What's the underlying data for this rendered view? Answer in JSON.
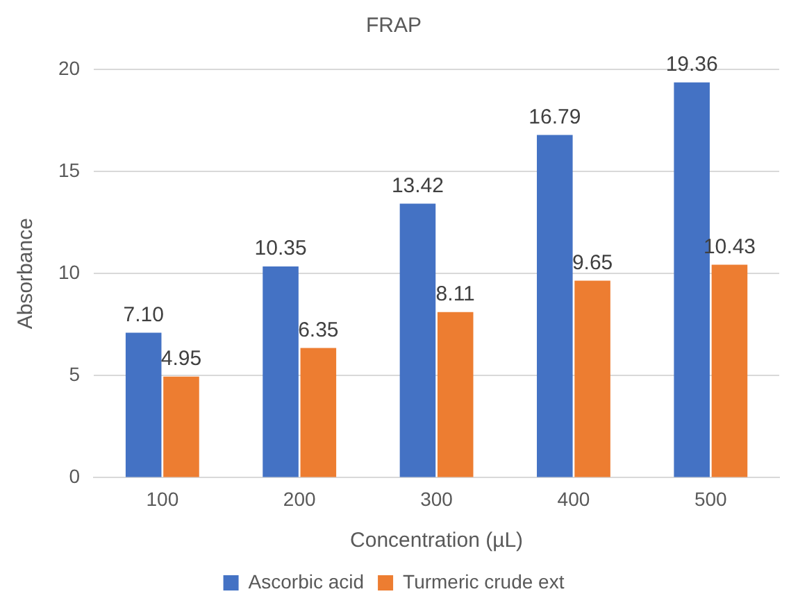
{
  "chart_data": {
    "type": "bar",
    "title": "FRAP",
    "xlabel": "Concentration (µL)",
    "ylabel": "Absorbance",
    "categories": [
      "100",
      "200",
      "300",
      "400",
      "500"
    ],
    "series": [
      {
        "name": "Ascorbic acid",
        "color": "#4472c4",
        "values": [
          7.1,
          10.35,
          13.42,
          16.79,
          19.36
        ],
        "value_labels": [
          "7.10",
          "10.35",
          "13.42",
          "16.79",
          "19.36"
        ]
      },
      {
        "name": "Turmeric crude ext",
        "color": "#ed7d31",
        "values": [
          4.95,
          6.35,
          8.11,
          9.65,
          10.43
        ],
        "value_labels": [
          "4.95",
          "6.35",
          "8.11",
          "9.65",
          "10.43"
        ]
      }
    ],
    "ylim": [
      0,
      20
    ],
    "yticks": [
      0,
      5,
      10,
      15,
      20
    ],
    "grid": "y",
    "legend": "bottom"
  }
}
